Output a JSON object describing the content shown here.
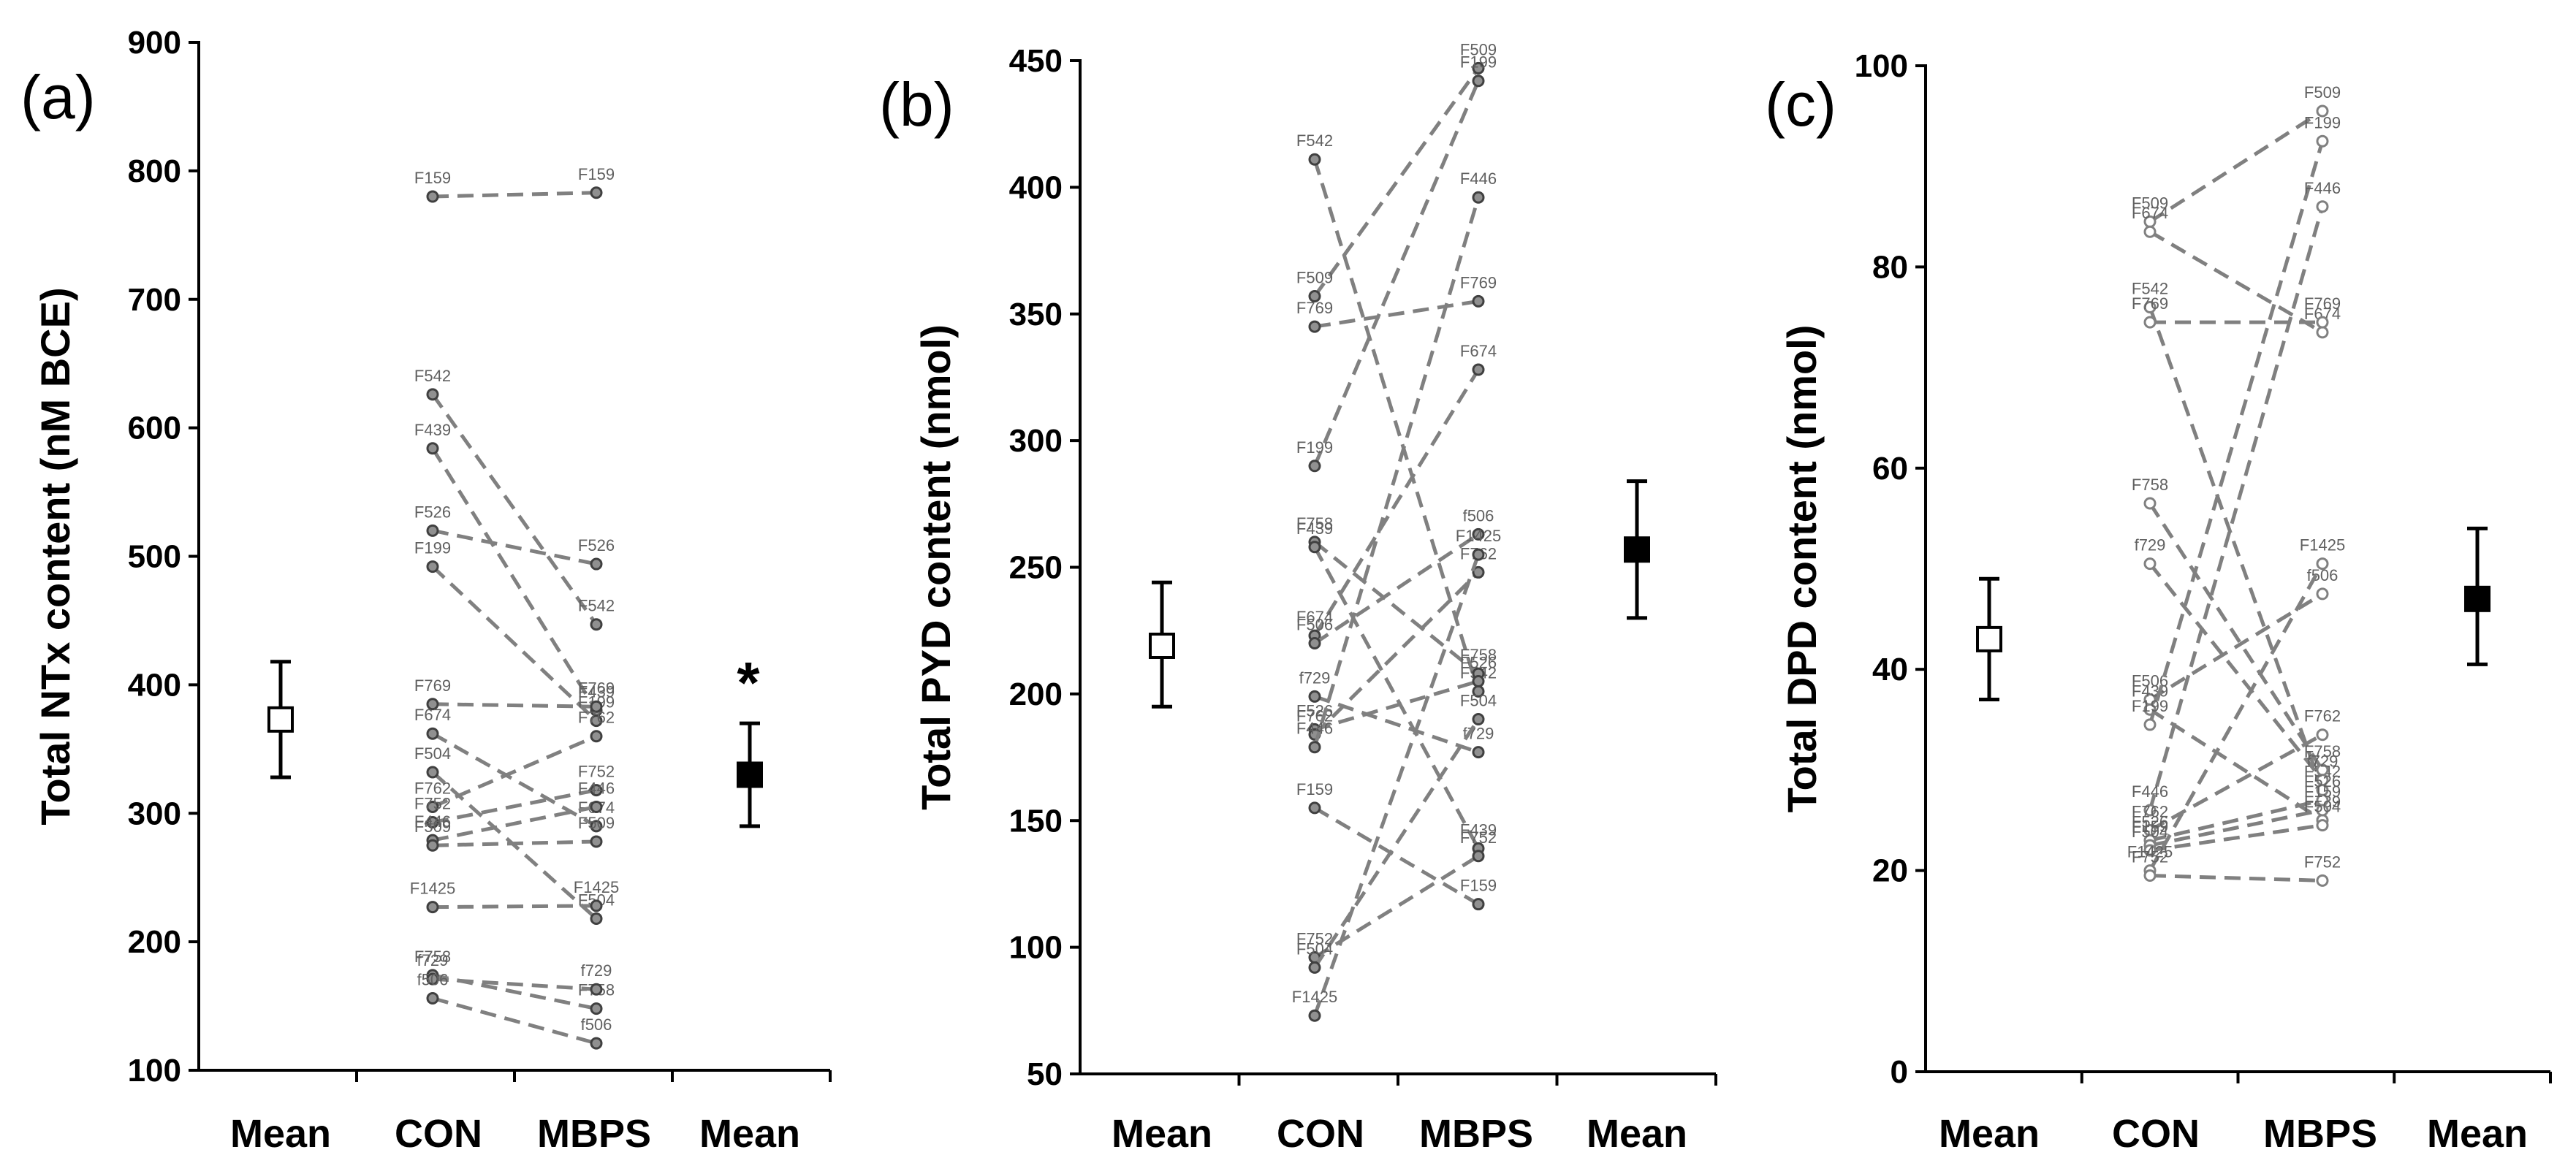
{
  "chart_data": [
    {
      "type": "scatter",
      "panel_label": "(a)",
      "ylabel": "Total NTx content (nM BCE)",
      "ylim": [
        100,
        900
      ],
      "yticks": [
        100,
        200,
        300,
        400,
        500,
        600,
        700,
        800,
        900
      ],
      "categories": [
        "Mean",
        "CON",
        "MBPS",
        "Mean"
      ],
      "marker": "filled",
      "mean_con": {
        "value": 373,
        "low": 328,
        "high": 418
      },
      "mean_mbps": {
        "value": 330,
        "low": 290,
        "high": 370
      },
      "significance": "*",
      "pairs": [
        {
          "con_label": "F159",
          "con": 780,
          "mbps_label": "F159",
          "mbps": 783
        },
        {
          "con_label": "F542",
          "con": 626,
          "mbps_label": "F542",
          "mbps": 447
        },
        {
          "con_label": "F439",
          "con": 584,
          "mbps_label": "F439",
          "mbps": 380
        },
        {
          "con_label": "F526",
          "con": 520,
          "mbps_label": "F526",
          "mbps": 494
        },
        {
          "con_label": "F199",
          "con": 492,
          "mbps_label": "F199",
          "mbps": 372
        },
        {
          "con_label": "F769",
          "con": 385,
          "mbps_label": "F769",
          "mbps": 383
        },
        {
          "con_label": "F674",
          "con": 362,
          "mbps_label": "F674",
          "mbps": 290
        },
        {
          "con_label": "F504",
          "con": 332,
          "mbps_label": "F504",
          "mbps": 218
        },
        {
          "con_label": "F762",
          "con": 305,
          "mbps_label": "F762",
          "mbps": 360
        },
        {
          "con_label": "F752",
          "con": 293,
          "mbps_label": "F752",
          "mbps": 318
        },
        {
          "con_label": "F446",
          "con": 279,
          "mbps_label": "F446",
          "mbps": 305
        },
        {
          "con_label": "F509",
          "con": 275,
          "mbps_label": "F509",
          "mbps": 278
        },
        {
          "con_label": "F1425",
          "con": 227,
          "mbps_label": "F1425",
          "mbps": 228
        },
        {
          "con_label": "F758",
          "con": 174,
          "mbps_label": "F758",
          "mbps": 148
        },
        {
          "con_label": "f729",
          "con": 171,
          "mbps_label": "f729",
          "mbps": 163
        },
        {
          "con_label": "f506",
          "con": 156,
          "mbps_label": "f506",
          "mbps": 121
        }
      ]
    },
    {
      "type": "scatter",
      "panel_label": "(b)",
      "ylabel": "Total PYD content (nmol)",
      "ylim": [
        50,
        450
      ],
      "yticks": [
        50,
        100,
        150,
        200,
        250,
        300,
        350,
        400,
        450
      ],
      "categories": [
        "Mean",
        "CON",
        "MBPS",
        "Mean"
      ],
      "marker": "filled",
      "mean_con": {
        "value": 219,
        "low": 195,
        "high": 244
      },
      "mean_mbps": {
        "value": 257,
        "low": 230,
        "high": 284
      },
      "significance": "",
      "pairs": [
        {
          "con_label": "F542",
          "con": 411,
          "mbps_label": "F542",
          "mbps": 201
        },
        {
          "con_label": "F509",
          "con": 357,
          "mbps_label": "F509",
          "mbps": 447
        },
        {
          "con_label": "F769",
          "con": 345,
          "mbps_label": "F769",
          "mbps": 355
        },
        {
          "con_label": "F199",
          "con": 290,
          "mbps_label": "F199",
          "mbps": 442
        },
        {
          "con_label": "F758",
          "con": 260,
          "mbps_label": "F758",
          "mbps": 208
        },
        {
          "con_label": "F439",
          "con": 258,
          "mbps_label": "F439",
          "mbps": 139
        },
        {
          "con_label": "F674",
          "con": 223,
          "mbps_label": "F674",
          "mbps": 328
        },
        {
          "con_label": "F506",
          "con": 220,
          "mbps_label": "f506",
          "mbps": 263
        },
        {
          "con_label": "f729",
          "con": 199,
          "mbps_label": "f729",
          "mbps": 177
        },
        {
          "con_label": "F526",
          "con": 186,
          "mbps_label": "F526",
          "mbps": 205
        },
        {
          "con_label": "F762",
          "con": 184,
          "mbps_label": "F762",
          "mbps": 248
        },
        {
          "con_label": "F446",
          "con": 179,
          "mbps_label": "F446",
          "mbps": 396
        },
        {
          "con_label": "F159",
          "con": 155,
          "mbps_label": "F159",
          "mbps": 117
        },
        {
          "con_label": "F752",
          "con": 96,
          "mbps_label": "F752",
          "mbps": 136
        },
        {
          "con_label": "F504",
          "con": 92,
          "mbps_label": "F504",
          "mbps": 190
        },
        {
          "con_label": "F1425",
          "con": 73,
          "mbps_label": "F1425",
          "mbps": 255
        }
      ]
    },
    {
      "type": "scatter",
      "panel_label": "(c)",
      "ylabel": "Total DPD content (nmol)",
      "ylim": [
        0,
        100
      ],
      "yticks": [
        0,
        20,
        40,
        60,
        80,
        100
      ],
      "categories": [
        "Mean",
        "CON",
        "MBPS",
        "Mean"
      ],
      "marker": "open",
      "mean_con": {
        "value": 43,
        "low": 37,
        "high": 49
      },
      "mean_mbps": {
        "value": 47,
        "low": 40.5,
        "high": 54
      },
      "significance": "",
      "pairs": [
        {
          "con_label": "F509",
          "con": 84.5,
          "mbps_label": "F509",
          "mbps": 95.5
        },
        {
          "con_label": "F674",
          "con": 83.5,
          "mbps_label": "F674",
          "mbps": 73.5
        },
        {
          "con_label": "F542",
          "con": 76,
          "mbps_label": "F542",
          "mbps": 28
        },
        {
          "con_label": "F769",
          "con": 74.5,
          "mbps_label": "F769",
          "mbps": 74.5
        },
        {
          "con_label": "F758",
          "con": 56.5,
          "mbps_label": "F758",
          "mbps": 30
        },
        {
          "con_label": "f729",
          "con": 50.5,
          "mbps_label": "f729",
          "mbps": 29
        },
        {
          "con_label": "F506",
          "con": 37,
          "mbps_label": "f506",
          "mbps": 47.5
        },
        {
          "con_label": "F439",
          "con": 36,
          "mbps_label": "F439",
          "mbps": 25
        },
        {
          "con_label": "F199",
          "con": 34.5,
          "mbps_label": "F199",
          "mbps": 92.5
        },
        {
          "con_label": "F446",
          "con": 26,
          "mbps_label": "F446",
          "mbps": 86
        },
        {
          "con_label": "F762",
          "con": 24,
          "mbps_label": "F762",
          "mbps": 33.5
        },
        {
          "con_label": "F526",
          "con": 23,
          "mbps_label": "F526",
          "mbps": 27
        },
        {
          "con_label": "F159",
          "con": 22.5,
          "mbps_label": "F159",
          "mbps": 26
        },
        {
          "con_label": "F504",
          "con": 22,
          "mbps_label": "F504",
          "mbps": 24.5
        },
        {
          "con_label": "F1425",
          "con": 20,
          "mbps_label": "F1425",
          "mbps": 50.5
        },
        {
          "con_label": "F752",
          "con": 19.5,
          "mbps_label": "F752",
          "mbps": 19
        }
      ]
    }
  ]
}
